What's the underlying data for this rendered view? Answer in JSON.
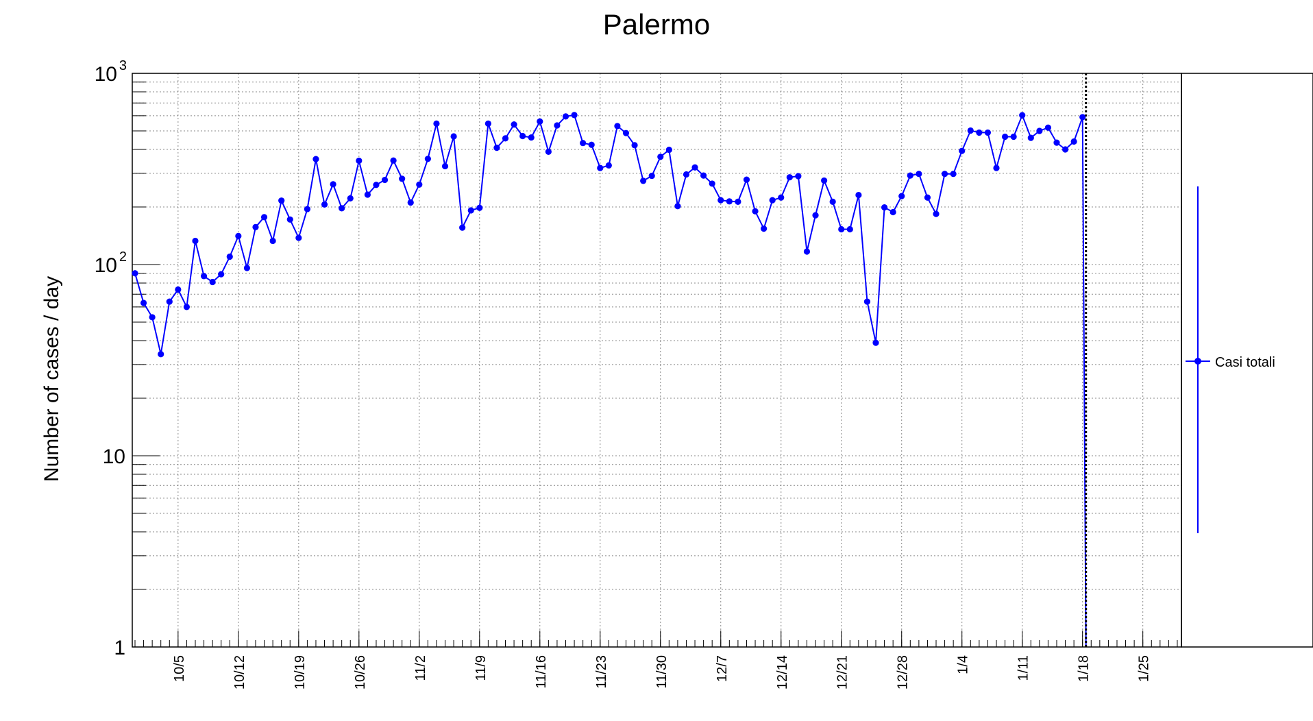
{
  "chart_data": {
    "type": "line",
    "title": "Palermo",
    "ylabel": "Number of cases / day",
    "yscale": "log",
    "ylim": [
      1,
      1000
    ],
    "y_ticks": [
      {
        "base": "1",
        "sup": ""
      },
      {
        "base": "10",
        "sup": ""
      },
      {
        "base": "10",
        "sup": "2"
      },
      {
        "base": "10",
        "sup": "3"
      }
    ],
    "x_tick_labels": [
      "10/5",
      "10/12",
      "10/19",
      "10/26",
      "11/2",
      "11/9",
      "11/16",
      "11/23",
      "11/30",
      "12/7",
      "12/14",
      "12/21",
      "12/28",
      "1/4",
      "1/11",
      "1/18",
      "1/25"
    ],
    "grid": true,
    "legend_placement": "right",
    "colors": {
      "series": "#0000ff",
      "marker_line": "#000000"
    },
    "series": [
      {
        "name": "Casi totali",
        "values": [
          90,
          63,
          53,
          34,
          64,
          74,
          60,
          133,
          87,
          81,
          89,
          110,
          141,
          96,
          157,
          177,
          133,
          216,
          172,
          138,
          195,
          356,
          206,
          263,
          197,
          222,
          349,
          232,
          261,
          277,
          350,
          281,
          211,
          262,
          357,
          546,
          327,
          468,
          156,
          192,
          198,
          546,
          408,
          457,
          540,
          470,
          462,
          560,
          389,
          534,
          595,
          605,
          432,
          423,
          320,
          330,
          530,
          487,
          421,
          274,
          291,
          366,
          398,
          202,
          296,
          322,
          292,
          265,
          217,
          214,
          213,
          278,
          190,
          154,
          217,
          224,
          286,
          290,
          117,
          181,
          275,
          213,
          153,
          153,
          231,
          64,
          39,
          199,
          188,
          228,
          292,
          298,
          224,
          184,
          298,
          298,
          393,
          502,
          490,
          490,
          320,
          466,
          466,
          604,
          460,
          500,
          520,
          434,
          400,
          440,
          590
        ],
        "marker_date_label": "1/18"
      }
    ]
  }
}
